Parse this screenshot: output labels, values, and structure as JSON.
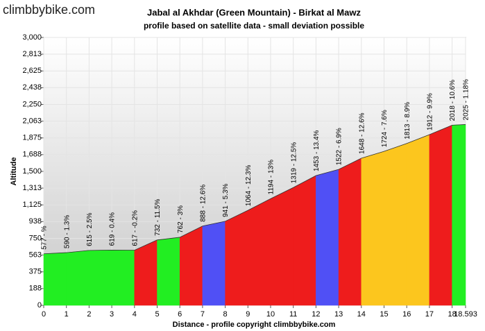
{
  "logo": "climbbybike.com",
  "chart_data": {
    "type": "area",
    "title": "Jabal al Akhdar (Green Mountain) - Birkat al Mawz",
    "subtitle": "profile based on satellite data - small deviation possible",
    "x_label": "Distance - profile copyright climbbybike.com",
    "y_label": "Altitude",
    "x": [
      0,
      1,
      2,
      3,
      4,
      5,
      6,
      7,
      8,
      9,
      10,
      11,
      12,
      13,
      14,
      15,
      16,
      17,
      18,
      18.593
    ],
    "values": [
      577,
      590,
      615,
      619,
      617,
      732,
      762,
      888,
      941,
      1064,
      1194,
      1319,
      1453,
      1522,
      1648,
      1724,
      1813,
      1912,
      2018,
      2025
    ],
    "value_labels": [
      "577 - %",
      "590 - 1.3%",
      "615 - 2.5%",
      "619 - 0.4%",
      "617 - -0.2%",
      "732 - 11.5%",
      "762 - 3%",
      "888 - 12.6%",
      "941 - 5.3%",
      "1064 - 12.3%",
      "1194 - 13%",
      "1319 - 12.5%",
      "1453 - 13.4%",
      "1522 - 6.9%",
      "1648 - 12.6%",
      "1724 - 7.6%",
      "1813 - 8.9%",
      "1912 - 9.9%",
      "2018 - 10.6%",
      "2025 - 1.18%"
    ],
    "segment_colors": [
      "#22ee22",
      "#22ee22",
      "#22ee22",
      "#22ee22",
      "#ee1c1c",
      "#22ee22",
      "#ee1c1c",
      "#5050f5",
      "#ee1c1c",
      "#ee1c1c",
      "#ee1c1c",
      "#ee1c1c",
      "#5050f5",
      "#ee1c1c",
      "#fcc61e",
      "#fcc61e",
      "#fcc61e",
      "#ee1c1c",
      "#22ee22"
    ],
    "xlim": [
      0,
      18.593
    ],
    "xticks": [
      0,
      1,
      2,
      3,
      4,
      5,
      6,
      7,
      8,
      9,
      10,
      11,
      12,
      13,
      14,
      15,
      16,
      17,
      18,
      18.593
    ],
    "ylim": [
      0,
      3000
    ],
    "yticks": [
      0,
      188,
      375,
      563,
      750,
      938,
      {
        "value": 1125,
        "label": "1,125"
      },
      {
        "value": 1313,
        "label": "1,313"
      },
      {
        "value": 1500,
        "label": "1,500"
      },
      {
        "value": 1688,
        "label": "1,688"
      },
      {
        "value": 1875,
        "label": "1,875"
      },
      {
        "value": 2063,
        "label": "2,063"
      },
      {
        "value": 2250,
        "label": "2,250"
      },
      {
        "value": 2438,
        "label": "2,438"
      },
      {
        "value": 2625,
        "label": "2,625"
      },
      {
        "value": 2813,
        "label": "2,813"
      },
      {
        "value": 3000,
        "label": "3,000"
      }
    ],
    "grid": true
  }
}
